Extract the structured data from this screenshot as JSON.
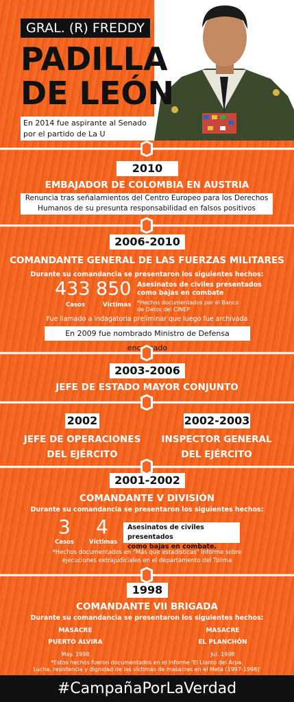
{
  "header": {
    "name_line1": "GRAL. (R) FREDDY",
    "name_line2": "PADILLA",
    "name_line3": "DE LEÓN",
    "intro": [
      "En 2014 fue aspirante al Senado",
      "por el partido de La U"
    ]
  },
  "sections": [
    {
      "year": "2010",
      "title": "EMBAJADOR DE COLOMBIA EN AUSTRIA",
      "box": [
        "Renuncia tras señalamientos del Centro Europeo para los Derechos",
        "Humanos de su presunta responsabilidad en falsos positivos"
      ]
    },
    {
      "year": "2006-2010",
      "title": "COMANDANTE GENERAL DE LAS FUERZAS MILITARES",
      "lead": "Durante su comandancia se presentaron los siguientes hechos:",
      "stats": [
        {
          "value": "433",
          "label": "Casos"
        },
        {
          "value": "850",
          "label": "Víctimas"
        }
      ],
      "description": [
        "Asesinatos de civiles presentados",
        "como bajas en combate"
      ],
      "note": [
        "*Hechos documentados por el Banco",
        "de Datos del CINEP"
      ],
      "text": "Fue llamado a indagatoria preliminar que luego fue archivada",
      "box": "En 2009 fue nombrado Ministro de Defensa encargado"
    },
    {
      "year": "2003-2006",
      "title": "JEFE DE ESTADO MAYOR CONJUNTO"
    },
    {
      "columns": [
        {
          "year": "2002",
          "title": [
            "JEFE DE OPERACIONES",
            "DEL EJÉRCITO"
          ]
        },
        {
          "year": "2002-2003",
          "title": [
            "INSPECTOR GENERAL",
            "DEL EJÉRCITO"
          ]
        }
      ]
    },
    {
      "year": "2001-2002",
      "title": "COMANDANTE V DIVISIÓN",
      "lead": "Durante su comandancia se presentaron los siguientes hechos:",
      "stats": [
        {
          "value": "3",
          "label": "Casos"
        },
        {
          "value": "4",
          "label": "Víctimas"
        }
      ],
      "box": [
        "Asesinatos de civiles presentados",
        "como bajas en combate."
      ],
      "note": [
        "*Hechos documentados en \"Más que estadísticas\" Informe sobre",
        "ejecuciones extrajudiciales en el departamento del Tolima"
      ]
    },
    {
      "year": "1998",
      "title": "COMANDANTE VII BRIGADA",
      "lead": "Durante su comandancia se presentaron los siguientes hechos:",
      "items": [
        {
          "kind": "MASACRE",
          "place": "PUERTO ALVIRA",
          "date": "May. 1998"
        },
        {
          "kind": "MASACRE",
          "place": "EL PLANCHÓN",
          "date": "Jul. 1998"
        }
      ],
      "note": [
        "*Estos hechos fueron documentados en el informe 'El Llanto del Arpa.",
        "Lucha, resistencia y dignidad de las víctimas de masacres en el Meta (1997-1998)'"
      ]
    }
  ],
  "footer": "#CampañaPorLaVerdad"
}
